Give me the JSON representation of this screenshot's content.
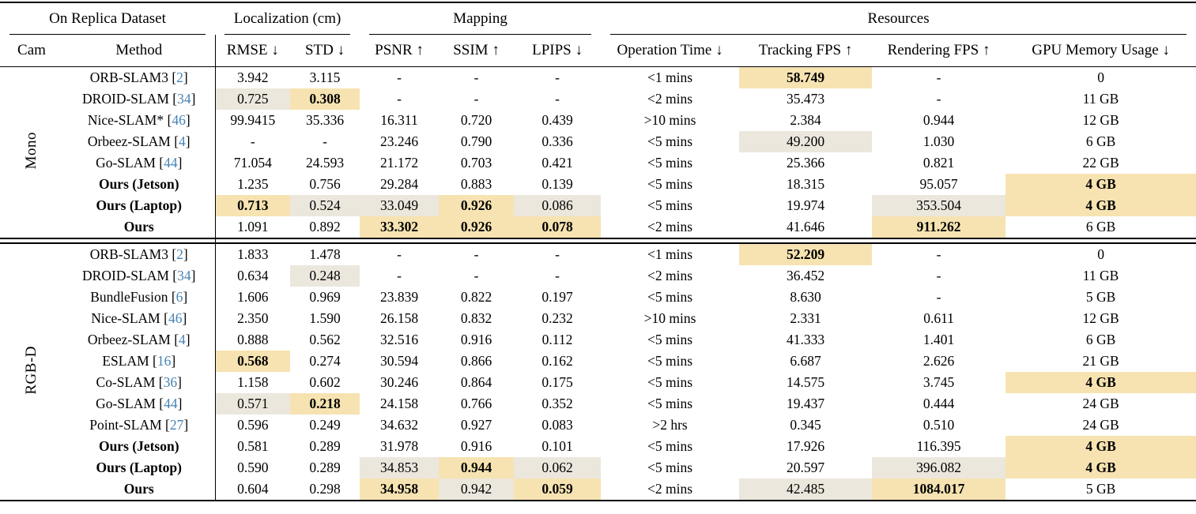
{
  "colors": {
    "best_highlight": "#F6E3B1",
    "second_highlight": "#ECE7DD",
    "citation_blue": "#4682B4"
  },
  "header": {
    "groups": [
      {
        "label": "On Replica Dataset",
        "span": 2
      },
      {
        "label": "Localization (cm)",
        "span": 2
      },
      {
        "label": "Mapping",
        "span": 3
      },
      {
        "label": "Resources",
        "span": 4
      }
    ],
    "columns": [
      "Cam",
      "Method",
      "RMSE ↓",
      "STD ↓",
      "PSNR ↑",
      "SSIM ↑",
      "LPIPS ↓",
      "Operation Time ↓",
      "Tracking FPS ↑",
      "Rendering FPS ↑",
      "GPU Memory Usage ↓"
    ]
  },
  "sections": [
    {
      "cam": "Mono",
      "rows": [
        {
          "method": "ORB-SLAM3",
          "cite": "2",
          "bold": false,
          "values": [
            {
              "v": "3.942"
            },
            {
              "v": "3.115"
            },
            {
              "v": "-"
            },
            {
              "v": "-"
            },
            {
              "v": "-"
            },
            {
              "v": "<1 mins"
            },
            {
              "v": "58.749",
              "hl": "best",
              "b": true
            },
            {
              "v": "-"
            },
            {
              "v": "0"
            }
          ]
        },
        {
          "method": "DROID-SLAM",
          "cite": "34",
          "bold": false,
          "values": [
            {
              "v": "0.725",
              "hl": "second"
            },
            {
              "v": "0.308",
              "hl": "best",
              "b": true
            },
            {
              "v": "-"
            },
            {
              "v": "-"
            },
            {
              "v": "-"
            },
            {
              "v": "<2 mins"
            },
            {
              "v": "35.473"
            },
            {
              "v": "-"
            },
            {
              "v": "11 GB"
            }
          ]
        },
        {
          "method": "Nice-SLAM*",
          "cite": "46",
          "bold": false,
          "values": [
            {
              "v": "99.9415"
            },
            {
              "v": "35.336"
            },
            {
              "v": "16.311"
            },
            {
              "v": "0.720"
            },
            {
              "v": "0.439"
            },
            {
              "v": ">10 mins"
            },
            {
              "v": "2.384"
            },
            {
              "v": "0.944"
            },
            {
              "v": "12 GB"
            }
          ]
        },
        {
          "method": "Orbeez-SLAM",
          "cite": "4",
          "bold": false,
          "values": [
            {
              "v": "-"
            },
            {
              "v": "-"
            },
            {
              "v": "23.246"
            },
            {
              "v": "0.790"
            },
            {
              "v": "0.336"
            },
            {
              "v": "<5 mins"
            },
            {
              "v": "49.200",
              "hl": "second"
            },
            {
              "v": "1.030"
            },
            {
              "v": "6 GB"
            }
          ]
        },
        {
          "method": "Go-SLAM",
          "cite": "44",
          "bold": false,
          "values": [
            {
              "v": "71.054"
            },
            {
              "v": "24.593"
            },
            {
              "v": "21.172"
            },
            {
              "v": "0.703"
            },
            {
              "v": "0.421"
            },
            {
              "v": "<5 mins"
            },
            {
              "v": "25.366"
            },
            {
              "v": "0.821"
            },
            {
              "v": "22 GB"
            }
          ]
        },
        {
          "method": "Ours (Jetson)",
          "cite": null,
          "bold": true,
          "values": [
            {
              "v": "1.235"
            },
            {
              "v": "0.756"
            },
            {
              "v": "29.284"
            },
            {
              "v": "0.883"
            },
            {
              "v": "0.139"
            },
            {
              "v": "<5 mins"
            },
            {
              "v": "18.315"
            },
            {
              "v": "95.057"
            },
            {
              "v": "4 GB",
              "hl": "best",
              "b": true
            }
          ]
        },
        {
          "method": "Ours (Laptop)",
          "cite": null,
          "bold": true,
          "values": [
            {
              "v": "0.713",
              "hl": "best",
              "b": true
            },
            {
              "v": "0.524",
              "hl": "second"
            },
            {
              "v": "33.049",
              "hl": "second"
            },
            {
              "v": "0.926",
              "hl": "best",
              "b": true
            },
            {
              "v": "0.086",
              "hl": "second"
            },
            {
              "v": "<5 mins"
            },
            {
              "v": "19.974"
            },
            {
              "v": "353.504",
              "hl": "second"
            },
            {
              "v": "4 GB",
              "hl": "best",
              "b": true
            }
          ]
        },
        {
          "method": "Ours",
          "cite": null,
          "bold": true,
          "values": [
            {
              "v": "1.091"
            },
            {
              "v": "0.892"
            },
            {
              "v": "33.302",
              "hl": "best",
              "b": true
            },
            {
              "v": "0.926",
              "hl": "best",
              "b": true
            },
            {
              "v": "0.078",
              "hl": "best",
              "b": true
            },
            {
              "v": "<2 mins"
            },
            {
              "v": "41.646"
            },
            {
              "v": "911.262",
              "hl": "best",
              "b": true
            },
            {
              "v": "6 GB"
            }
          ]
        }
      ]
    },
    {
      "cam": "RGB-D",
      "rows": [
        {
          "method": "ORB-SLAM3",
          "cite": "2",
          "bold": false,
          "values": [
            {
              "v": "1.833"
            },
            {
              "v": "1.478"
            },
            {
              "v": "-"
            },
            {
              "v": "-"
            },
            {
              "v": "-"
            },
            {
              "v": "<1 mins"
            },
            {
              "v": "52.209",
              "hl": "best",
              "b": true
            },
            {
              "v": "-"
            },
            {
              "v": "0"
            }
          ]
        },
        {
          "method": "DROID-SLAM",
          "cite": "34",
          "bold": false,
          "values": [
            {
              "v": "0.634"
            },
            {
              "v": "0.248",
              "hl": "second"
            },
            {
              "v": "-"
            },
            {
              "v": "-"
            },
            {
              "v": "-"
            },
            {
              "v": "<2 mins"
            },
            {
              "v": "36.452"
            },
            {
              "v": "-"
            },
            {
              "v": "11 GB"
            }
          ]
        },
        {
          "method": "BundleFusion",
          "cite": "6",
          "bold": false,
          "values": [
            {
              "v": "1.606"
            },
            {
              "v": "0.969"
            },
            {
              "v": "23.839"
            },
            {
              "v": "0.822"
            },
            {
              "v": "0.197"
            },
            {
              "v": "<5 mins"
            },
            {
              "v": "8.630"
            },
            {
              "v": "-"
            },
            {
              "v": "5 GB"
            }
          ]
        },
        {
          "method": "Nice-SLAM",
          "cite": "46",
          "bold": false,
          "values": [
            {
              "v": "2.350"
            },
            {
              "v": "1.590"
            },
            {
              "v": "26.158"
            },
            {
              "v": "0.832"
            },
            {
              "v": "0.232"
            },
            {
              "v": ">10 mins"
            },
            {
              "v": "2.331"
            },
            {
              "v": "0.611"
            },
            {
              "v": "12 GB"
            }
          ]
        },
        {
          "method": "Orbeez-SLAM",
          "cite": "4",
          "bold": false,
          "values": [
            {
              "v": "0.888"
            },
            {
              "v": "0.562"
            },
            {
              "v": "32.516"
            },
            {
              "v": "0.916"
            },
            {
              "v": "0.112"
            },
            {
              "v": "<5 mins"
            },
            {
              "v": "41.333"
            },
            {
              "v": "1.401"
            },
            {
              "v": "6 GB"
            }
          ]
        },
        {
          "method": "ESLAM",
          "cite": "16",
          "bold": false,
          "values": [
            {
              "v": "0.568",
              "hl": "best",
              "b": true
            },
            {
              "v": "0.274"
            },
            {
              "v": "30.594"
            },
            {
              "v": "0.866"
            },
            {
              "v": "0.162"
            },
            {
              "v": "<5 mins"
            },
            {
              "v": "6.687"
            },
            {
              "v": "2.626"
            },
            {
              "v": "21 GB"
            }
          ]
        },
        {
          "method": "Co-SLAM",
          "cite": "36",
          "bold": false,
          "values": [
            {
              "v": "1.158"
            },
            {
              "v": "0.602"
            },
            {
              "v": "30.246"
            },
            {
              "v": "0.864"
            },
            {
              "v": "0.175"
            },
            {
              "v": "<5 mins"
            },
            {
              "v": "14.575"
            },
            {
              "v": "3.745"
            },
            {
              "v": "4 GB",
              "hl": "best",
              "b": true
            }
          ]
        },
        {
          "method": "Go-SLAM",
          "cite": "44",
          "bold": false,
          "values": [
            {
              "v": "0.571",
              "hl": "second"
            },
            {
              "v": "0.218",
              "hl": "best",
              "b": true
            },
            {
              "v": "24.158"
            },
            {
              "v": "0.766"
            },
            {
              "v": "0.352"
            },
            {
              "v": "<5 mins"
            },
            {
              "v": "19.437"
            },
            {
              "v": "0.444"
            },
            {
              "v": "24 GB"
            }
          ]
        },
        {
          "method": "Point-SLAM",
          "cite": "27",
          "bold": false,
          "values": [
            {
              "v": "0.596"
            },
            {
              "v": "0.249"
            },
            {
              "v": "34.632"
            },
            {
              "v": "0.927"
            },
            {
              "v": "0.083"
            },
            {
              "v": ">2 hrs"
            },
            {
              "v": "0.345"
            },
            {
              "v": "0.510"
            },
            {
              "v": "24 GB"
            }
          ]
        },
        {
          "method": "Ours (Jetson)",
          "cite": null,
          "bold": true,
          "values": [
            {
              "v": "0.581"
            },
            {
              "v": "0.289"
            },
            {
              "v": "31.978"
            },
            {
              "v": "0.916"
            },
            {
              "v": "0.101"
            },
            {
              "v": "<5 mins"
            },
            {
              "v": "17.926"
            },
            {
              "v": "116.395"
            },
            {
              "v": "4 GB",
              "hl": "best",
              "b": true
            }
          ]
        },
        {
          "method": "Ours (Laptop)",
          "cite": null,
          "bold": true,
          "values": [
            {
              "v": "0.590"
            },
            {
              "v": "0.289"
            },
            {
              "v": "34.853",
              "hl": "second"
            },
            {
              "v": "0.944",
              "hl": "best",
              "b": true
            },
            {
              "v": "0.062",
              "hl": "second"
            },
            {
              "v": "<5 mins"
            },
            {
              "v": "20.597"
            },
            {
              "v": "396.082",
              "hl": "second"
            },
            {
              "v": "4 GB",
              "hl": "best",
              "b": true
            }
          ]
        },
        {
          "method": "Ours",
          "cite": null,
          "bold": true,
          "values": [
            {
              "v": "0.604"
            },
            {
              "v": "0.298"
            },
            {
              "v": "34.958",
              "hl": "best",
              "b": true
            },
            {
              "v": "0.942",
              "hl": "second"
            },
            {
              "v": "0.059",
              "hl": "best",
              "b": true
            },
            {
              "v": "<2 mins"
            },
            {
              "v": "42.485",
              "hl": "second"
            },
            {
              "v": "1084.017",
              "hl": "best",
              "b": true
            },
            {
              "v": "5 GB"
            }
          ]
        }
      ]
    }
  ]
}
